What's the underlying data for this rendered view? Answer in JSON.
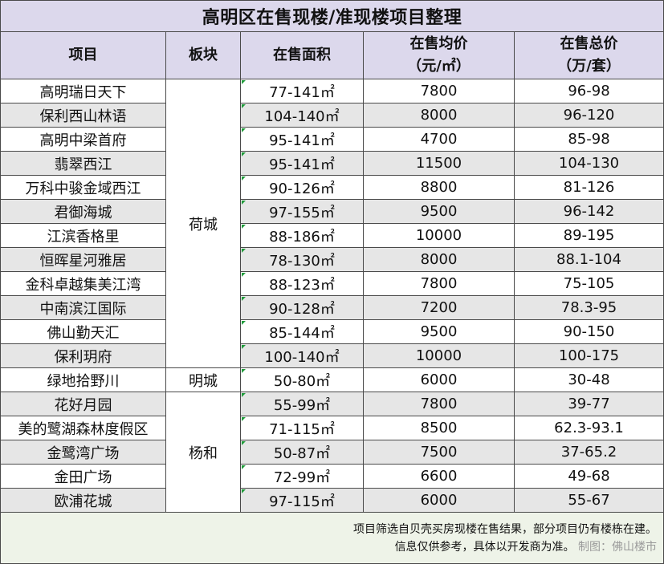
{
  "title": "高明区在售现楼/准现楼项目整理",
  "headers": {
    "project": "项目",
    "block": "板块",
    "area": "在售面积",
    "avg_price": [
      "在售均价",
      "（元/㎡）"
    ],
    "total_price": [
      "在售总价",
      "（万/套）"
    ]
  },
  "rows": [
    {
      "project": "高明瑞日天下",
      "area": "77-141㎡",
      "avg_price": "7800",
      "total_price": "96-98"
    },
    {
      "project": "保利西山林语",
      "area": "104-140㎡",
      "avg_price": "8000",
      "total_price": "96-120"
    },
    {
      "project": "高明中梁首府",
      "area": "95-141㎡",
      "avg_price": "4700",
      "total_price": "85-98"
    },
    {
      "project": "翡翠西江",
      "area": "95-141㎡",
      "avg_price": "11500",
      "total_price": "104-130"
    },
    {
      "project": "万科中骏金域西江",
      "area": "90-126㎡",
      "avg_price": "8800",
      "total_price": "81-126"
    },
    {
      "project": "君御海城",
      "area": "97-155㎡",
      "avg_price": "9500",
      "total_price": "96-142"
    },
    {
      "project": "江滨香格里",
      "area": "88-186㎡",
      "avg_price": "10000",
      "total_price": "89-195"
    },
    {
      "project": "恒晖星河雅居",
      "area": "78-130㎡",
      "avg_price": "8000",
      "total_price": "88.1-104"
    },
    {
      "project": "金科卓越集美江湾",
      "area": "88-123㎡",
      "avg_price": "7800",
      "total_price": "75-105"
    },
    {
      "project": "中南滨江国际",
      "area": "90-128㎡",
      "avg_price": "7200",
      "total_price": "78.3-95"
    },
    {
      "project": "佛山勤天汇",
      "area": "85-144㎡",
      "avg_price": "9500",
      "total_price": "90-150"
    },
    {
      "project": "保利玥府",
      "area": "100-140㎡",
      "avg_price": "10000",
      "total_price": "100-175"
    },
    {
      "project": "绿地拾野川",
      "area": "50-80㎡",
      "avg_price": "6000",
      "total_price": "30-48"
    },
    {
      "project": "花好月园",
      "area": "55-99㎡",
      "avg_price": "7800",
      "total_price": "39-77"
    },
    {
      "project": "美的鹭湖森林度假区",
      "area": "71-115㎡",
      "avg_price": "8500",
      "total_price": "62.3-93.1"
    },
    {
      "project": "金鹭湾广场",
      "area": "50-87㎡",
      "avg_price": "7500",
      "total_price": "37-65.2"
    },
    {
      "project": "金田广场",
      "area": "72-99㎡",
      "avg_price": "6600",
      "total_price": "49-68"
    },
    {
      "project": "欧浦花城",
      "area": "97-115㎡",
      "avg_price": "6000",
      "total_price": "55-67"
    }
  ],
  "blocks": [
    {
      "name": "荷城",
      "start": 0,
      "span": 12
    },
    {
      "name": "明城",
      "start": 12,
      "span": 1
    },
    {
      "name": "杨和",
      "start": 13,
      "span": 5
    }
  ],
  "footer": {
    "line1": "项目筛选自贝壳买房现楼在售结果，部分项目仍有楼栋在建。",
    "line2": "信息仅供参考，具体以开发商为准。",
    "credit": "制图：佛山楼市"
  },
  "colors": {
    "header_bg": "#dcd8ec",
    "zebra_bg": "#e6e6e6",
    "footer_bg": "#eef3e8",
    "cell_marker": "#1f9b3a"
  }
}
